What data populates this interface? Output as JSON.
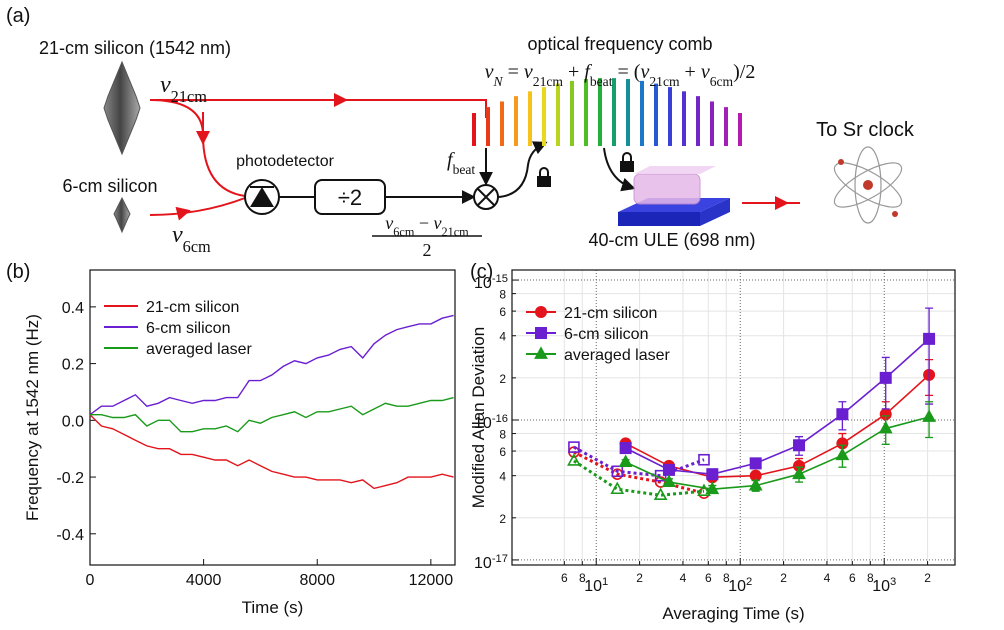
{
  "diagram": {
    "panel_label": "(a)",
    "cavity_long": "21-cm silicon (1542 nm)",
    "cavity_short": "6-cm silicon",
    "nu_long": [
      {
        "text": "ν",
        "italic": true
      },
      {
        "text": "21cm",
        "sub": true
      }
    ],
    "nu_short": [
      {
        "text": "ν",
        "italic": true
      },
      {
        "text": "6cm",
        "sub": true
      }
    ],
    "photodetector": "photodetector",
    "divider": "÷2",
    "fraction_numerator": [
      {
        "text": "ν",
        "italic": true
      },
      {
        "text": "6cm",
        "sub": true
      },
      {
        "text": " − "
      },
      {
        "text": "ν",
        "italic": true
      },
      {
        "text": "21cm",
        "sub": true
      }
    ],
    "fraction_denominator": "2",
    "comb_title": "optical frequency comb",
    "comb_formula": [
      {
        "text": "ν",
        "italic": true
      },
      {
        "text": "N",
        "sub": true,
        "italic": true
      },
      {
        "text": " = "
      },
      {
        "text": "ν",
        "italic": true
      },
      {
        "text": "21cm",
        "sub": true
      },
      {
        "text": " + "
      },
      {
        "text": "f",
        "italic": true
      },
      {
        "text": "beat",
        "sub": true
      },
      {
        "text": " = ("
      },
      {
        "text": "ν",
        "italic": true
      },
      {
        "text": "21cm",
        "sub": true
      },
      {
        "text": " + "
      },
      {
        "text": "ν",
        "italic": true
      },
      {
        "text": "6cm",
        "sub": true
      },
      {
        "text": ")/2"
      }
    ],
    "f_beat": [
      {
        "text": "f",
        "italic": true
      },
      {
        "text": "beat",
        "sub": true
      }
    ],
    "ule": "40-cm ULE (698 nm)",
    "destination": "To Sr clock"
  },
  "chart_data": [
    {
      "type": "line",
      "panel_label": "(b)",
      "xlabel": "Time (s)",
      "ylabel": "Frequency at 1542 nm (Hz)",
      "x": [
        0,
        400,
        800,
        1200,
        1600,
        2000,
        2400,
        2800,
        3200,
        3600,
        4000,
        4400,
        4800,
        5200,
        5600,
        6000,
        6400,
        6800,
        7200,
        7600,
        8000,
        8400,
        8800,
        9200,
        9600,
        10000,
        10400,
        10800,
        11200,
        11600,
        12000,
        12400,
        12800
      ],
      "xlim": [
        0,
        12850
      ],
      "xticks": [
        0,
        4000,
        8000,
        12000
      ],
      "ylim": [
        -0.51,
        0.53
      ],
      "yticks": [
        -0.4,
        -0.2,
        {
          "value": 0,
          "label": "0.0"
        },
        0.2,
        0.4
      ],
      "legend": "upper left",
      "series": [
        {
          "name": "21-cm silicon",
          "color": "#e3141b",
          "values": [
            0.02,
            -0.02,
            -0.03,
            -0.05,
            -0.07,
            -0.09,
            -0.1,
            -0.1,
            -0.12,
            -0.12,
            -0.13,
            -0.14,
            -0.14,
            -0.16,
            -0.14,
            -0.16,
            -0.18,
            -0.19,
            -0.2,
            -0.2,
            -0.21,
            -0.21,
            -0.21,
            -0.22,
            -0.21,
            -0.24,
            -0.23,
            -0.22,
            -0.2,
            -0.2,
            -0.2,
            -0.19,
            -0.2
          ]
        },
        {
          "name": "6-cm silicon",
          "color": "#6a1fd1",
          "values": [
            0.02,
            0.05,
            0.05,
            0.07,
            0.09,
            0.05,
            0.06,
            0.08,
            0.07,
            0.06,
            0.07,
            0.07,
            0.08,
            0.08,
            0.14,
            0.14,
            0.16,
            0.19,
            0.21,
            0.2,
            0.22,
            0.23,
            0.25,
            0.26,
            0.22,
            0.27,
            0.3,
            0.32,
            0.33,
            0.34,
            0.34,
            0.36,
            0.37
          ]
        },
        {
          "name": "averaged laser",
          "color": "#1a9a1a",
          "values": [
            0.02,
            0.02,
            0.01,
            0.01,
            0.02,
            -0.02,
            0,
            0,
            -0.04,
            -0.04,
            -0.03,
            -0.03,
            -0.02,
            -0.04,
            0,
            -0.01,
            0.01,
            0.02,
            0.03,
            0.01,
            0.03,
            0.03,
            0.04,
            0.05,
            0.02,
            0.04,
            0.06,
            0.05,
            0.05,
            0.06,
            0.07,
            0.07,
            0.08
          ]
        }
      ]
    },
    {
      "type": "scatter",
      "panel_label": "(c)",
      "xlabel": "Averaging Time (s)",
      "ylabel": "Modified Allan Deviation",
      "log_x": true,
      "log_y": true,
      "grid": true,
      "legend": "upper left",
      "xlim": [
        2.6,
        3100
      ],
      "ylim": [
        9.2e-18,
        1.18e-15
      ],
      "xticks": [
        {
          "value": 10,
          "label": "10",
          "exponent": "1"
        },
        {
          "value": 100,
          "label": "10",
          "exponent": "2"
        },
        {
          "value": 1000,
          "label": "10",
          "exponent": "3"
        }
      ],
      "xminor_ticks": [
        {
          "value": 6,
          "label": "6"
        },
        {
          "value": 8,
          "label": "8"
        },
        {
          "value": 20,
          "label": "2"
        },
        {
          "value": 40,
          "label": "4"
        },
        {
          "value": 60,
          "label": "6"
        },
        {
          "value": 80,
          "label": "8"
        },
        {
          "value": 200,
          "label": "2"
        },
        {
          "value": 400,
          "label": "4"
        },
        {
          "value": 600,
          "label": "6"
        },
        {
          "value": 800,
          "label": "8"
        },
        {
          "value": 2000,
          "label": "2"
        }
      ],
      "yticks": [
        {
          "value": 1e-17,
          "label": "10",
          "exponent": "-17"
        },
        {
          "value": 1e-16,
          "label": "10",
          "exponent": "-16"
        },
        {
          "value": 1e-15,
          "label": "10",
          "exponent": "-15"
        }
      ],
      "yminor_ticks": [
        {
          "value": 2e-17,
          "label": "2"
        },
        {
          "value": 4e-17,
          "label": "4"
        },
        {
          "value": 6e-17,
          "label": "6"
        },
        {
          "value": 8e-17,
          "label": "8"
        },
        {
          "value": 2e-16,
          "label": "2"
        },
        {
          "value": 4e-16,
          "label": "4"
        },
        {
          "value": 6e-16,
          "label": "6"
        },
        {
          "value": 8e-16,
          "label": "8"
        }
      ],
      "series": [
        {
          "name": "21-cm silicon",
          "color": "#e3141b",
          "marker": "circle",
          "x": [
            16,
            32,
            64,
            128,
            256,
            512,
            1024,
            2048
          ],
          "values": [
            6.8e-17,
            4.7e-17,
            3.9e-17,
            4e-17,
            4.7e-17,
            6.8e-17,
            1.1e-16,
            2.1e-16
          ],
          "errors": [
            2e-18,
            2e-18,
            2e-18,
            3e-18,
            6e-18,
            1.2e-17,
            2.5e-17,
            6e-17
          ],
          "x_short": [
            7,
            14,
            28,
            56
          ],
          "values_short": [
            5.9e-17,
            4.1e-17,
            3.6e-17,
            3e-17
          ]
        },
        {
          "name": "6-cm silicon",
          "color": "#6a1fd1",
          "marker": "square",
          "x": [
            16,
            32,
            64,
            128,
            256,
            512,
            1024,
            2048
          ],
          "values": [
            6.3e-17,
            4.4e-17,
            4.1e-17,
            4.9e-17,
            6.6e-17,
            1.1e-16,
            2e-16,
            3.8e-16
          ],
          "errors": [
            3e-18,
            2e-18,
            2e-18,
            4e-18,
            1e-17,
            2.5e-17,
            8e-17,
            2.5e-16
          ],
          "x_short": [
            7,
            14,
            28,
            56
          ],
          "values_short": [
            6.4e-17,
            4.3e-17,
            4e-17,
            5.2e-17
          ]
        },
        {
          "name": "averaged laser",
          "color": "#1a9a1a",
          "marker": "triangle",
          "x": [
            16,
            32,
            64,
            128,
            256,
            512,
            1024,
            2048
          ],
          "values": [
            5e-17,
            3.6e-17,
            3.2e-17,
            3.4e-17,
            4.1e-17,
            5.6e-17,
            8.7e-17,
            1.05e-16
          ],
          "errors": [
            2e-18,
            2e-18,
            2e-18,
            3e-18,
            5e-18,
            1e-17,
            2e-17,
            3e-17
          ],
          "x_short": [
            7,
            14,
            28,
            56
          ],
          "values_short": [
            5.1e-17,
            3.2e-17,
            2.9e-17,
            3.1e-17
          ]
        }
      ]
    }
  ]
}
